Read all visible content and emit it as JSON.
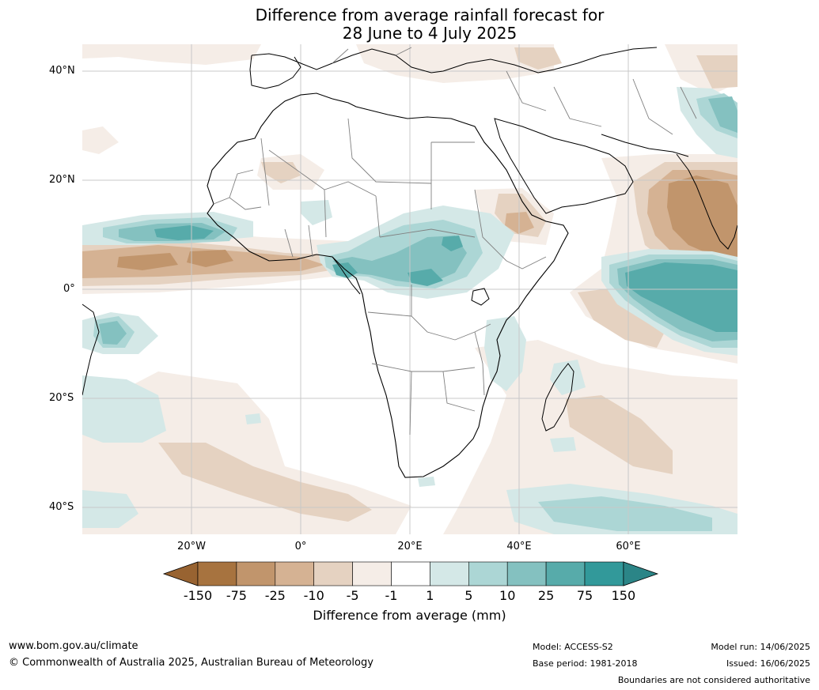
{
  "title": {
    "line1": "Difference from average rainfall forecast for",
    "line2": "28 June to 4 July 2025"
  },
  "map": {
    "lat_labels": [
      "40°N",
      "20°N",
      "0°",
      "20°S",
      "40°S"
    ],
    "lon_labels": [
      "20°W",
      "0°",
      "20°E",
      "40°E",
      "60°E"
    ],
    "colors": {
      "land_outline": "#000000",
      "borders": "#808080",
      "gridlines": "#c8c8c8"
    }
  },
  "colorbar": {
    "tick_labels": [
      "-150",
      "-75",
      "-25",
      "-10",
      "-5",
      "-1",
      "1",
      "5",
      "10",
      "25",
      "75",
      "150"
    ],
    "bin_colors": [
      "#a7733f",
      "#c1956c",
      "#d5b293",
      "#e5d2c1",
      "#f5ede7",
      "#ffffff",
      "#d4e8e7",
      "#acd6d5",
      "#84c1c0",
      "#57abaa",
      "#32999a"
    ],
    "under_color": "#986331",
    "over_color": "#2b8587",
    "label": "Difference from average (mm)"
  },
  "footer": {
    "website": "www.bom.gov.au/climate",
    "copyright": "© Commonwealth of Australia 2025, Australian Bureau of Meteorology",
    "model": "Model: ACCESS-S2",
    "base_period": "Base period: 1981-2018",
    "model_run": "Model run: 14/06/2025",
    "issued": "Issued: 16/06/2025",
    "disclaimer": "Boundaries are not considered authoritative"
  }
}
